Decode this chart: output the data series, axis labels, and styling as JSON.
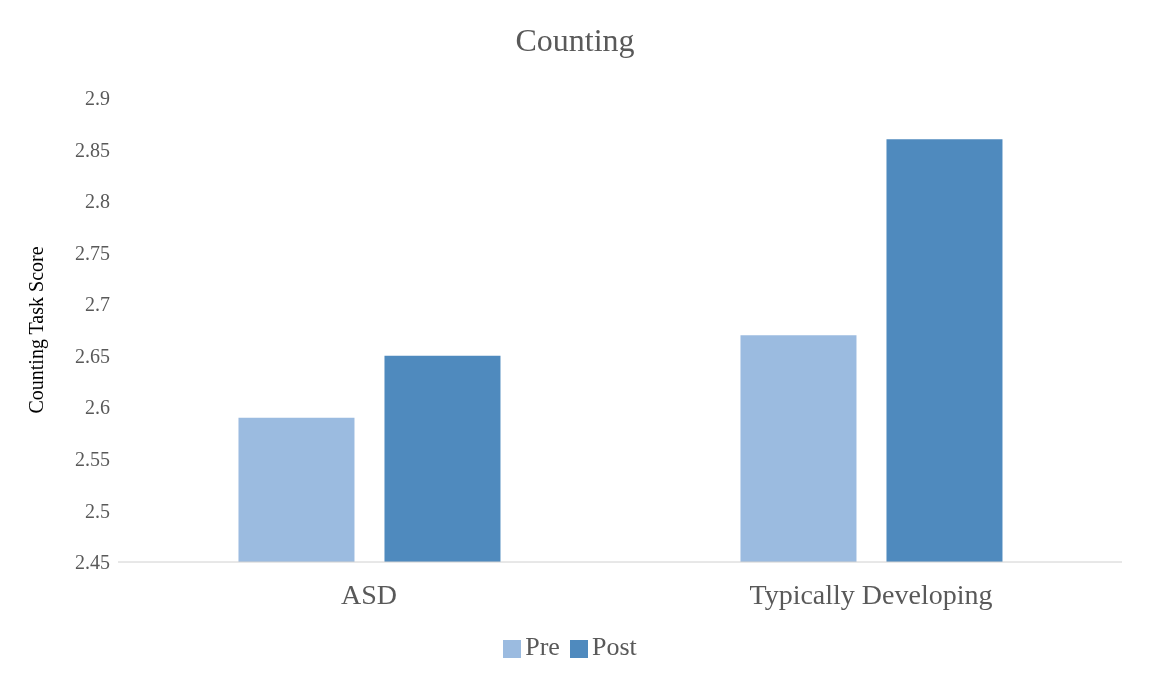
{
  "chart_data": {
    "type": "bar",
    "title": "Counting",
    "ylabel": "Counting Task Score",
    "categories": [
      "ASD",
      "Typically Developing"
    ],
    "series": [
      {
        "name": "Pre",
        "color": "#9bbbe0",
        "values": [
          2.59,
          2.67
        ]
      },
      {
        "name": "Post",
        "color": "#4f8abe",
        "values": [
          2.65,
          2.86
        ]
      }
    ],
    "ylim": [
      2.45,
      2.9
    ],
    "yticks": [
      2.45,
      2.5,
      2.55,
      2.6,
      2.65,
      2.7,
      2.75,
      2.8,
      2.85,
      2.9
    ],
    "legend": "bottom"
  }
}
